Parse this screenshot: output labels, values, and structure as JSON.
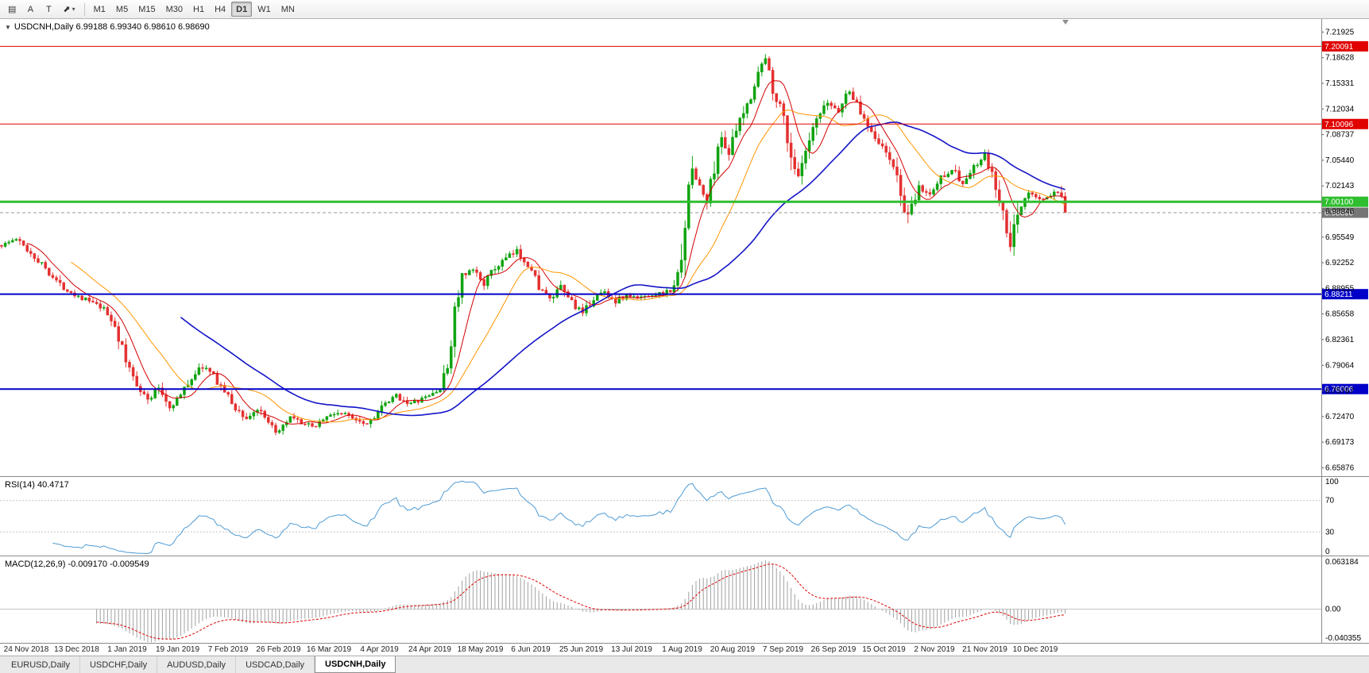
{
  "toolbar": {
    "tools": [
      {
        "name": "templates-icon",
        "glyph": "▤",
        "dropdown": ""
      },
      {
        "name": "arrow-tool-icon",
        "glyph": "A",
        "dropdown": ""
      },
      {
        "name": "text-tool-icon",
        "glyph": "T",
        "dropdown": ""
      },
      {
        "name": "drawing-tools-icon",
        "glyph": "⬈",
        "dropdown": "▾"
      }
    ],
    "timeframes": [
      "M1",
      "M5",
      "M15",
      "M30",
      "H1",
      "H4",
      "D1",
      "W1",
      "MN"
    ],
    "active_timeframe": "D1"
  },
  "chart": {
    "title": "USDCNH,Daily 6.99188 6.99340 6.98610 6.98690",
    "symbol": "USDCNH",
    "period": "Daily",
    "ohlc": {
      "open": "6.99188",
      "high": "6.99340",
      "low": "6.98610",
      "close": "6.98690"
    }
  },
  "rsi_panel": {
    "label": "RSI(14) 40.4717"
  },
  "macd_panel": {
    "label": "MACD(12,26,9) -0.009170 -0.009549"
  },
  "tabs": [
    {
      "label": "EURUSD,Daily",
      "active": false
    },
    {
      "label": "USDCHF,Daily",
      "active": false
    },
    {
      "label": "AUDUSD,Daily",
      "active": false
    },
    {
      "label": "USDCAD,Daily",
      "active": false
    },
    {
      "label": "USDCNH,Daily",
      "active": true
    }
  ],
  "chart_data": {
    "type": "candlestick",
    "symbol": "USDCNH",
    "timeframe": "Daily",
    "n_candles": 292,
    "last_close": 6.9869,
    "y_range": [
      6.648,
      7.236
    ],
    "price_axis_ticks": [
      "7.21925",
      "7.18628",
      "7.15331",
      "7.12034",
      "7.08737",
      "7.05440",
      "7.02143",
      "6.98846",
      "6.95549",
      "6.92252",
      "6.88955",
      "6.85658",
      "6.82361",
      "6.79064",
      "6.75767",
      "6.72470",
      "6.69173",
      "6.65876"
    ],
    "x_ticks": [
      "24 Nov 2018",
      "13 Dec 2018",
      "1 Jan 2019",
      "19 Jan 2019",
      "7 Feb 2019",
      "26 Feb 2019",
      "16 Mar 2019",
      "4 Apr 2019",
      "24 Apr 2019",
      "18 May 2019",
      "6 Jun 2019",
      "25 Jun 2019",
      "13 Jul 2019",
      "1 Aug 2019",
      "20 Aug 2019",
      "7 Sep 2019",
      "26 Sep 2019",
      "15 Oct 2019",
      "2 Nov 2019",
      "21 Nov 2019",
      "10 Dec 2019"
    ],
    "price_path_anchors": [
      [
        0,
        6.945
      ],
      [
        4,
        6.953
      ],
      [
        8,
        6.935
      ],
      [
        12,
        6.916
      ],
      [
        16,
        6.894
      ],
      [
        20,
        6.882
      ],
      [
        24,
        6.873
      ],
      [
        28,
        6.862
      ],
      [
        31,
        6.842
      ],
      [
        34,
        6.795
      ],
      [
        37,
        6.768
      ],
      [
        40,
        6.745
      ],
      [
        43,
        6.762
      ],
      [
        46,
        6.737
      ],
      [
        49,
        6.752
      ],
      [
        52,
        6.775
      ],
      [
        55,
        6.79
      ],
      [
        58,
        6.777
      ],
      [
        61,
        6.757
      ],
      [
        64,
        6.735
      ],
      [
        67,
        6.722
      ],
      [
        70,
        6.734
      ],
      [
        73,
        6.714
      ],
      [
        76,
        6.704
      ],
      [
        79,
        6.722
      ],
      [
        82,
        6.717
      ],
      [
        85,
        6.711
      ],
      [
        88,
        6.722
      ],
      [
        92,
        6.73
      ],
      [
        96,
        6.724
      ],
      [
        100,
        6.716
      ],
      [
        104,
        6.736
      ],
      [
        108,
        6.751
      ],
      [
        112,
        6.741
      ],
      [
        116,
        6.749
      ],
      [
        120,
        6.76
      ],
      [
        122,
        6.788
      ],
      [
        124,
        6.86
      ],
      [
        126,
        6.902
      ],
      [
        129,
        6.913
      ],
      [
        132,
        6.897
      ],
      [
        135,
        6.915
      ],
      [
        138,
        6.928
      ],
      [
        141,
        6.937
      ],
      [
        144,
        6.921
      ],
      [
        147,
        6.893
      ],
      [
        150,
        6.874
      ],
      [
        153,
        6.89
      ],
      [
        156,
        6.873
      ],
      [
        159,
        6.855
      ],
      [
        162,
        6.878
      ],
      [
        165,
        6.885
      ],
      [
        168,
        6.873
      ],
      [
        171,
        6.88
      ],
      [
        174,
        6.877
      ],
      [
        177,
        6.881
      ],
      [
        180,
        6.883
      ],
      [
        183,
        6.886
      ],
      [
        185,
        6.905
      ],
      [
        187,
        6.975
      ],
      [
        189,
        7.045
      ],
      [
        191,
        7.02
      ],
      [
        193,
        7.0
      ],
      [
        195,
        7.046
      ],
      [
        197,
        7.085
      ],
      [
        199,
        7.064
      ],
      [
        201,
        7.092
      ],
      [
        204,
        7.125
      ],
      [
        207,
        7.168
      ],
      [
        209,
        7.185
      ],
      [
        211,
        7.148
      ],
      [
        214,
        7.11
      ],
      [
        216,
        7.06
      ],
      [
        218,
        7.03
      ],
      [
        220,
        7.062
      ],
      [
        223,
        7.105
      ],
      [
        226,
        7.128
      ],
      [
        229,
        7.118
      ],
      [
        232,
        7.146
      ],
      [
        235,
        7.115
      ],
      [
        238,
        7.094
      ],
      [
        241,
        7.07
      ],
      [
        244,
        7.048
      ],
      [
        246,
        7.008
      ],
      [
        248,
        6.978
      ],
      [
        251,
        7.018
      ],
      [
        254,
        7.01
      ],
      [
        257,
        7.032
      ],
      [
        260,
        7.044
      ],
      [
        263,
        7.024
      ],
      [
        266,
        7.044
      ],
      [
        269,
        7.06
      ],
      [
        271,
        7.034
      ],
      [
        274,
        6.984
      ],
      [
        276,
        6.938
      ],
      [
        278,
        6.99
      ],
      [
        281,
        7.012
      ],
      [
        284,
        7.004
      ],
      [
        287,
        7.008
      ],
      [
        289,
        7.014
      ],
      [
        291,
        6.99
      ]
    ],
    "hlines": [
      {
        "value": 7.20091,
        "label": "7.20091",
        "color": "#e00000",
        "width": 1,
        "tag_bg": "#e00000",
        "style": "solid"
      },
      {
        "value": 7.10096,
        "label": "7.10096",
        "color": "#e00000",
        "width": 1,
        "tag_bg": "#e00000",
        "style": "solid"
      },
      {
        "value": 7.001,
        "label": "7.00100",
        "color": "#2fbe2f",
        "width": 3,
        "tag_bg": "#2fbe2f",
        "style": "solid"
      },
      {
        "value": 6.9869,
        "label": "6.98690",
        "color": "#9a9a9a",
        "width": 1,
        "tag_bg": "#767676",
        "style": "dash"
      },
      {
        "value": 6.88211,
        "label": "6.88211",
        "color": "#0000c8",
        "width": 2,
        "tag_bg": "#0000c8",
        "style": "solid"
      },
      {
        "value": 6.76006,
        "label": "6.76006",
        "color": "#0000c8",
        "width": 2,
        "tag_bg": "#0000c8",
        "style": "solid"
      }
    ],
    "moving_averages": [
      {
        "period": 8,
        "color": "#d40000",
        "width": 1
      },
      {
        "period": 20,
        "color": "#ff9500",
        "width": 1
      },
      {
        "period": 50,
        "color": "#1414c8",
        "width": 1.6
      }
    ],
    "indicators": {
      "rsi": {
        "name": "RSI",
        "period": 14,
        "current": 40.4717,
        "range": [
          0,
          100
        ],
        "axis_labels": [
          "100",
          "70",
          "30",
          "0"
        ],
        "levels": [
          70,
          30
        ],
        "color": "#4e9bd4"
      },
      "macd": {
        "name": "MACD",
        "fast": 12,
        "slow": 26,
        "signal": 9,
        "current_macd": -0.00917,
        "current_signal": -0.009549,
        "range": [
          -0.040355,
          0.063184
        ],
        "axis_labels": [
          "0.063184",
          "0.00",
          "-0.040355"
        ],
        "histogram_color": "#a0a0a0",
        "signal_color": "#e00000"
      }
    },
    "colors": {
      "up": "#0fa30f",
      "down": "#e43030",
      "background": "#ffffff",
      "axis_text": "#000000"
    }
  }
}
